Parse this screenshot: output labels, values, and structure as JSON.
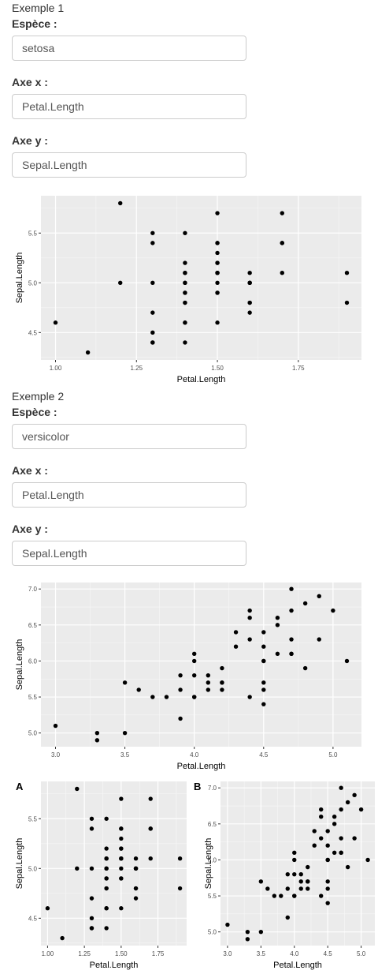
{
  "examples": [
    {
      "title": "Exemple 1",
      "species_label": "Espèce :",
      "species_value": "setosa",
      "x_label": "Axe x :",
      "x_value": "Petal.Length",
      "y_label": "Axe y :",
      "y_value": "Sepal.Length"
    },
    {
      "title": "Exemple 2",
      "species_label": "Espèce :",
      "species_value": "versicolor",
      "x_label": "Axe x :",
      "x_value": "Petal.Length",
      "y_label": "Axe y :",
      "y_value": "Sepal.Length"
    }
  ],
  "panel_tags": [
    "A",
    "B"
  ],
  "chart_data": [
    {
      "type": "scatter",
      "title": "",
      "xlabel": "Petal.Length",
      "ylabel": "Sepal.Length",
      "xlim": [
        0.955,
        1.945
      ],
      "ylim": [
        4.225,
        5.875
      ],
      "xticks": [
        1.0,
        1.25,
        1.5,
        1.75
      ],
      "yticks": [
        4.5,
        5.0,
        5.5
      ],
      "xtick_labels": [
        "1.00",
        "1.25",
        "1.50",
        "1.75"
      ],
      "ytick_labels": [
        "4.5",
        "5.0",
        "5.5"
      ],
      "grid": true,
      "background": "#ebebeb",
      "point_color": "#000000",
      "points": [
        [
          1.4,
          5.1
        ],
        [
          1.4,
          4.9
        ],
        [
          1.3,
          4.7
        ],
        [
          1.5,
          4.6
        ],
        [
          1.4,
          5.0
        ],
        [
          1.7,
          5.4
        ],
        [
          1.4,
          4.6
        ],
        [
          1.5,
          5.0
        ],
        [
          1.4,
          4.4
        ],
        [
          1.5,
          4.9
        ],
        [
          1.5,
          5.4
        ],
        [
          1.6,
          4.8
        ],
        [
          1.4,
          4.8
        ],
        [
          1.1,
          4.3
        ],
        [
          1.2,
          5.8
        ],
        [
          1.5,
          5.7
        ],
        [
          1.3,
          5.4
        ],
        [
          1.4,
          5.1
        ],
        [
          1.7,
          5.7
        ],
        [
          1.5,
          5.1
        ],
        [
          1.7,
          5.4
        ],
        [
          1.5,
          5.1
        ],
        [
          1.0,
          4.6
        ],
        [
          1.7,
          5.1
        ],
        [
          1.9,
          4.8
        ],
        [
          1.6,
          5.0
        ],
        [
          1.6,
          5.0
        ],
        [
          1.5,
          5.2
        ],
        [
          1.4,
          5.2
        ],
        [
          1.6,
          4.7
        ],
        [
          1.6,
          4.8
        ],
        [
          1.5,
          5.4
        ],
        [
          1.5,
          5.2
        ],
        [
          1.4,
          5.5
        ],
        [
          1.5,
          4.9
        ],
        [
          1.2,
          5.0
        ],
        [
          1.3,
          5.5
        ],
        [
          1.4,
          4.9
        ],
        [
          1.3,
          4.4
        ],
        [
          1.5,
          5.1
        ],
        [
          1.3,
          5.0
        ],
        [
          1.3,
          4.5
        ],
        [
          1.3,
          4.4
        ],
        [
          1.6,
          5.0
        ],
        [
          1.9,
          5.1
        ],
        [
          1.4,
          4.8
        ],
        [
          1.6,
          5.1
        ],
        [
          1.4,
          4.6
        ],
        [
          1.5,
          5.3
        ],
        [
          1.4,
          5.0
        ]
      ]
    },
    {
      "type": "scatter",
      "title": "",
      "xlabel": "Petal.Length",
      "ylabel": "Sepal.Length",
      "xlim": [
        2.895,
        5.205
      ],
      "ylim": [
        4.81,
        7.09
      ],
      "xticks": [
        3.0,
        3.5,
        4.0,
        4.5,
        5.0
      ],
      "yticks": [
        5.0,
        5.5,
        6.0,
        6.5,
        7.0
      ],
      "xtick_labels": [
        "3.0",
        "3.5",
        "4.0",
        "4.5",
        "5.0"
      ],
      "ytick_labels": [
        "5.0",
        "5.5",
        "6.0",
        "6.5",
        "7.0"
      ],
      "grid": true,
      "background": "#ebebeb",
      "point_color": "#000000",
      "points": [
        [
          4.7,
          7.0
        ],
        [
          4.5,
          6.4
        ],
        [
          4.9,
          6.9
        ],
        [
          4.0,
          5.5
        ],
        [
          4.6,
          6.5
        ],
        [
          4.5,
          5.7
        ],
        [
          4.7,
          6.3
        ],
        [
          3.3,
          4.9
        ],
        [
          4.6,
          6.6
        ],
        [
          3.9,
          5.2
        ],
        [
          3.5,
          5.0
        ],
        [
          4.2,
          5.9
        ],
        [
          4.0,
          6.0
        ],
        [
          4.7,
          6.1
        ],
        [
          3.6,
          5.6
        ],
        [
          4.4,
          6.7
        ],
        [
          4.5,
          5.6
        ],
        [
          4.1,
          5.8
        ],
        [
          4.5,
          6.2
        ],
        [
          3.9,
          5.6
        ],
        [
          4.8,
          5.9
        ],
        [
          4.0,
          6.1
        ],
        [
          4.9,
          6.3
        ],
        [
          4.7,
          6.1
        ],
        [
          4.3,
          6.4
        ],
        [
          4.4,
          6.6
        ],
        [
          4.8,
          6.8
        ],
        [
          5.0,
          6.7
        ],
        [
          4.5,
          6.0
        ],
        [
          3.5,
          5.7
        ],
        [
          3.8,
          5.5
        ],
        [
          3.7,
          5.5
        ],
        [
          3.9,
          5.8
        ],
        [
          5.1,
          6.0
        ],
        [
          4.5,
          5.4
        ],
        [
          4.5,
          6.0
        ],
        [
          4.7,
          6.7
        ],
        [
          4.4,
          6.3
        ],
        [
          4.1,
          5.6
        ],
        [
          4.0,
          5.5
        ],
        [
          4.4,
          5.5
        ],
        [
          4.6,
          6.1
        ],
        [
          4.0,
          5.8
        ],
        [
          3.3,
          5.0
        ],
        [
          4.2,
          5.6
        ],
        [
          4.2,
          5.7
        ],
        [
          4.2,
          5.7
        ],
        [
          4.3,
          6.2
        ],
        [
          3.0,
          5.1
        ],
        [
          4.1,
          5.7
        ]
      ]
    }
  ]
}
